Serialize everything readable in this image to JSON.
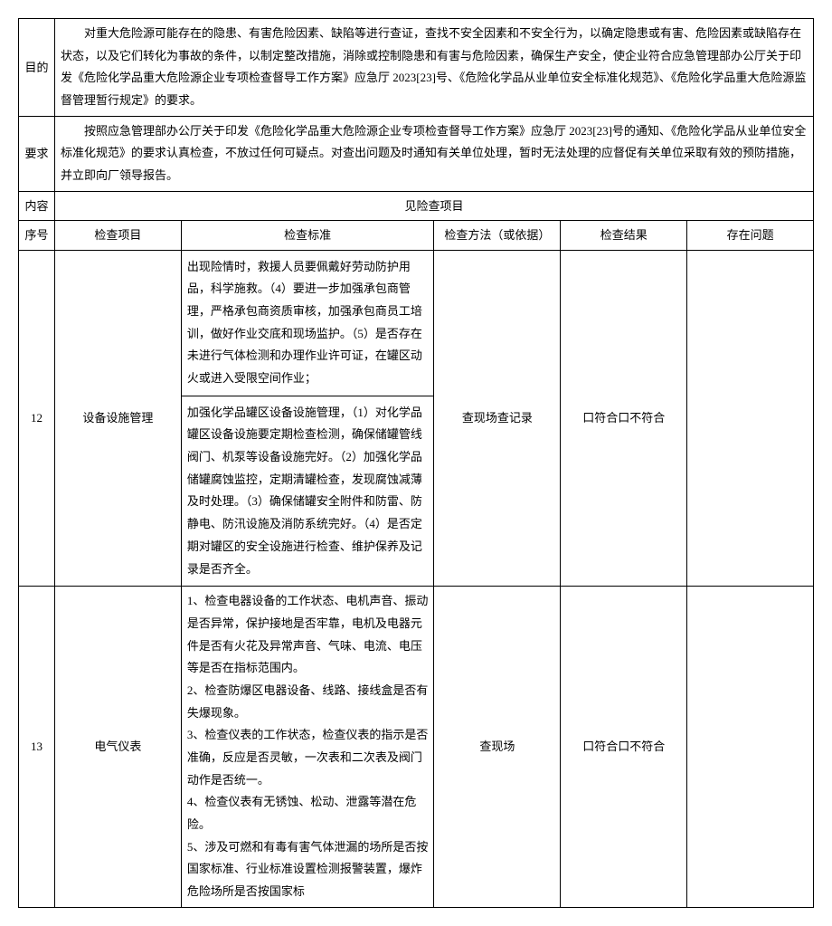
{
  "labels": {
    "purpose": "目的",
    "requirement": "要求",
    "content": "内容"
  },
  "purpose_text": "对重大危险源可能存在的隐患、有害危险因素、缺陷等进行查证，查找不安全因素和不安全行为，以确定隐患或有害、危险因素或缺陷存在状态，以及它们转化为事故的条件，以制定整改措施，消除或控制隐患和有害与危险因素，确保生产安全，使企业符合应急管理部办公厅关于印发《危险化学品重大危险源企业专项检查督导工作方案》应急厅 2023[23]号、《危险化学品从业单位安全标准化规范》、《危险化学品重大危险源监督管理暂行规定》的要求。",
  "requirement_text": "按照应急管理部办公厅关于印发《危险化学品重大危险源企业专项检查督导工作方案》应急厅 2023[23]号的通知、《危险化学品从业单位安全标准化规范》的要求认真检查，不放过任何可疑点。对查出问题及时通知有关单位处理，暂时无法处理的应督促有关单位采取有效的预防措施，并立即向厂领导报告。",
  "content_text_right": "见险查项目",
  "columns": {
    "seq": "序号",
    "item": "检查项目",
    "standard": "检查标准",
    "method": "检查方法（或依据）",
    "result": "检查结果",
    "problem": "存在问题"
  },
  "rows": [
    {
      "seq": "12",
      "item": "设备设施管理",
      "standards": [
        "出现险情时，救援人员要佩戴好劳动防护用品，科学施救。（4）要进一步加强承包商管理，严格承包商资质审核，加强承包商员工培训，做好作业交底和现场监护。（5）是否存在未进行气体检测和办理作业许可证，在罐区动火或进入受限空间作业；",
        "加强化学品罐区设备设施管理，（1）对化学品罐区设备设施要定期检查检测，确保储罐管线阀门、机泵等设备设施完好。（2）加强化学品储罐腐蚀监控，定期清罐检查，发现腐蚀减薄及时处理。（3）确保储罐安全附件和防雷、防静电、防汛设施及消防系统完好。（4）是否定期对罐区的安全设施进行检查、维护保养及记录是否齐全。"
      ],
      "method": "查现场查记录",
      "result": "口符合口不符合",
      "problem": ""
    },
    {
      "seq": "13",
      "item": "电气仪表",
      "standards": [
        "1、检查电器设备的工作状态、电机声音、振动是否异常，保护接地是否牢靠，电机及电器元件是否有火花及异常声音、气味、电流、电压等是否在指标范围内。\n2、检查防爆区电器设备、线路、接线盒是否有失爆现象。\n3、检查仪表的工作状态，检查仪表的指示是否准确，反应是否灵敏，一次表和二次表及阀门动作是否统一。\n4、检查仪表有无锈蚀、松动、泄露等潜在危险。\n5、涉及可燃和有毒有害气体泄漏的场所是否按国家标准、行业标准设置检测报警装置，爆炸危险场所是否按国家标"
      ],
      "method": "查现场",
      "result": "口符合口不符合",
      "problem": ""
    }
  ]
}
